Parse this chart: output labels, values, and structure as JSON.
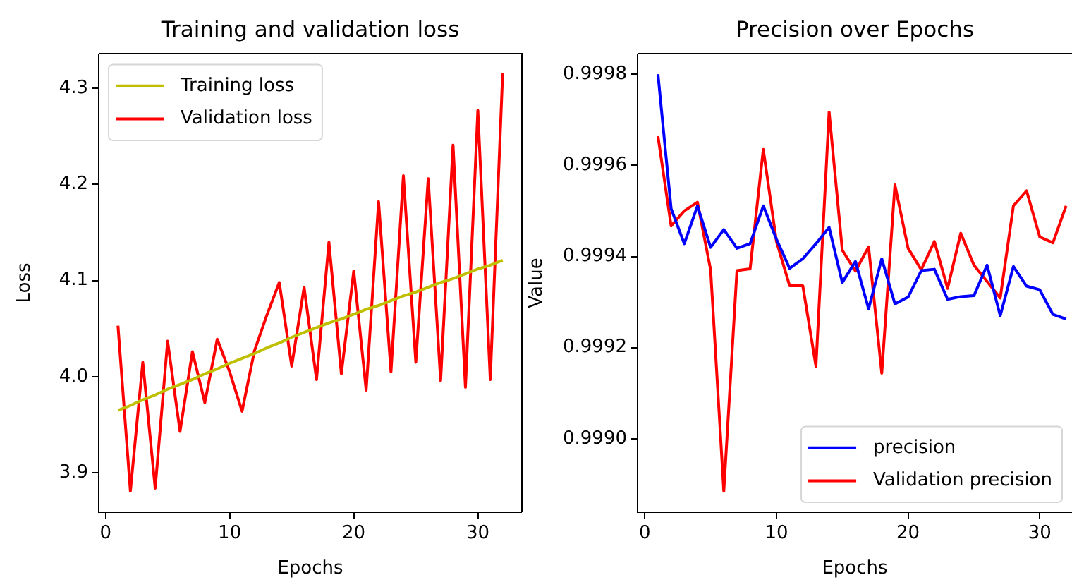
{
  "chart_data": [
    {
      "type": "line",
      "title": "Training and validation loss",
      "xlabel": "Epochs",
      "ylabel": "Loss",
      "x": [
        1,
        2,
        3,
        4,
        5,
        6,
        7,
        8,
        9,
        10,
        11,
        12,
        13,
        14,
        15,
        16,
        17,
        18,
        19,
        20,
        21,
        22,
        23,
        24,
        25,
        26,
        27,
        28,
        29,
        30,
        31,
        32
      ],
      "series": [
        {
          "name": "Training loss",
          "color": "#bfbf00",
          "values": [
            3.965,
            3.97,
            3.976,
            3.981,
            3.987,
            3.992,
            3.997,
            4.003,
            4.008,
            4.014,
            4.019,
            4.024,
            4.03,
            4.035,
            4.041,
            4.046,
            4.051,
            4.056,
            4.06,
            4.065,
            4.07,
            4.074,
            4.079,
            4.084,
            4.088,
            4.093,
            4.098,
            4.102,
            4.107,
            4.112,
            4.116,
            4.121
          ]
        },
        {
          "name": "Validation loss",
          "color": "#ff0000",
          "values": [
            4.053,
            3.881,
            4.015,
            3.884,
            4.037,
            3.943,
            4.026,
            3.973,
            4.039,
            4.005,
            3.964,
            4.027,
            4.064,
            4.098,
            4.011,
            4.093,
            3.997,
            4.14,
            4.003,
            4.11,
            3.986,
            4.182,
            4.005,
            4.209,
            4.015,
            4.206,
            3.996,
            4.241,
            3.989,
            4.277,
            3.997,
            4.316
          ]
        }
      ],
      "xlim": [
        -0.55,
        33.55
      ],
      "xticks": [
        0,
        10,
        20,
        30
      ],
      "ylim": [
        3.859,
        4.336
      ],
      "yticks": [
        3.9,
        {
          "value": 4,
          "label": "4.0"
        },
        4.1,
        4.2,
        4.3
      ],
      "legend": "top left"
    },
    {
      "type": "line",
      "title": "Precision over Epochs",
      "xlabel": "Epochs",
      "ylabel": "Value",
      "x": [
        1,
        2,
        3,
        4,
        5,
        6,
        7,
        8,
        9,
        10,
        11,
        12,
        13,
        14,
        15,
        16,
        17,
        18,
        19,
        20,
        21,
        22,
        23,
        24,
        25,
        26,
        27,
        28,
        29,
        30,
        31,
        32
      ],
      "series": [
        {
          "name": "precision",
          "color": "#0000ff",
          "values": [
            0.9998,
            0.999505,
            0.999428,
            0.999511,
            0.99942,
            0.999459,
            0.999418,
            0.999428,
            0.999511,
            0.999438,
            0.999374,
            0.999395,
            0.999428,
            0.999464,
            0.999343,
            0.999389,
            0.999285,
            0.999395,
            0.999296,
            0.999311,
            0.999369,
            0.999372,
            0.999306,
            0.999312,
            0.999314,
            0.999381,
            0.99927,
            0.999378,
            0.999335,
            0.999327,
            0.999273,
            0.999263
          ]
        },
        {
          "name": "Validation precision",
          "color": "#ff0000",
          "values": [
            0.999664,
            0.999467,
            0.9995,
            0.999519,
            0.999371,
            0.998885,
            0.999369,
            0.999373,
            0.999635,
            0.999433,
            0.999336,
            0.999336,
            0.999159,
            0.999717,
            0.999414,
            0.999368,
            0.999421,
            0.999144,
            0.999557,
            0.999418,
            0.999371,
            0.999433,
            0.99933,
            0.999451,
            0.999381,
            0.999345,
            0.999309,
            0.999511,
            0.999544,
            0.999443,
            0.99943,
            0.999511
          ]
        }
      ],
      "xlim": [
        -0.55,
        32.45
      ],
      "xticks": [
        0,
        10,
        20,
        30
      ],
      "ylim": [
        0.998839,
        0.999845
      ],
      "yticks": [
        {
          "value": 0.999,
          "label": "0.9990"
        },
        0.9992,
        0.9994,
        0.9996,
        0.9998
      ],
      "legend": "bottom right"
    }
  ]
}
